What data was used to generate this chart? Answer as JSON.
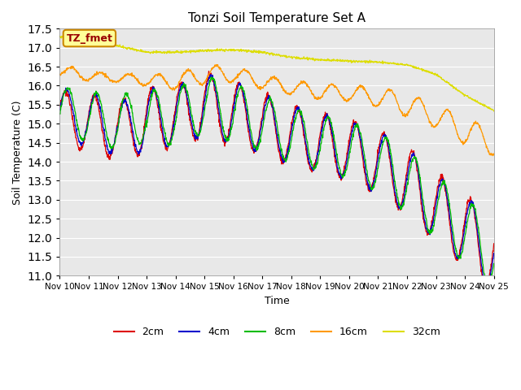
{
  "title": "Tonzi Soil Temperature Set A",
  "xlabel": "Time",
  "ylabel": "Soil Temperature (C)",
  "ylim": [
    11.0,
    17.5
  ],
  "plot_bg_color": "#e8e8e8",
  "annotation_text": "TZ_fmet",
  "annotation_color": "#990000",
  "annotation_bg": "#ffff99",
  "annotation_border": "#cc8800",
  "legend_labels": [
    "2cm",
    "4cm",
    "8cm",
    "16cm",
    "32cm"
  ],
  "legend_colors": [
    "#dd0000",
    "#0000cc",
    "#00bb00",
    "#ff9900",
    "#dddd00"
  ],
  "x_tick_labels": [
    "Nov 10",
    "Nov 11",
    "Nov 12",
    "Nov 13",
    "Nov 14",
    "Nov 15",
    "Nov 16",
    "Nov 17",
    "Nov 18",
    "Nov 19",
    "Nov 20",
    "Nov 21",
    "Nov 22",
    "Nov 23",
    "Nov 24",
    "Nov 25"
  ],
  "n_days": 15,
  "pts_per_day": 96
}
